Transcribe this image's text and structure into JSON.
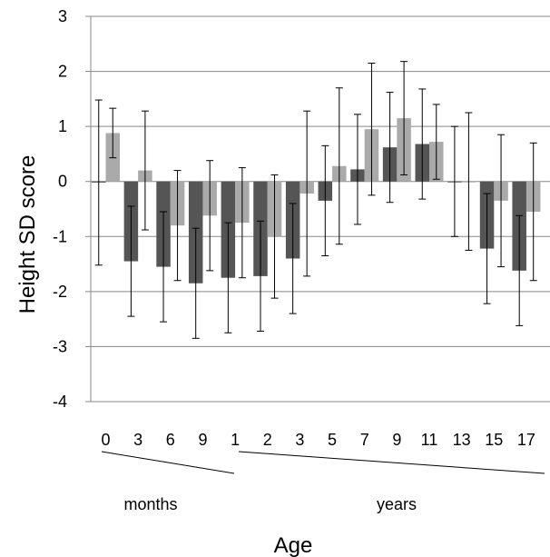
{
  "chart_data": {
    "type": "bar",
    "title": "",
    "ylabel": "Height SD score",
    "xlabel": "Age",
    "group_labels": [
      "months",
      "years"
    ],
    "categories": [
      "0",
      "3",
      "6",
      "9",
      "1",
      "2",
      "3",
      "5",
      "7",
      "9",
      "11",
      "13",
      "15",
      "17"
    ],
    "ylim": [
      -4,
      3
    ],
    "yticks": [
      3,
      2,
      1,
      0,
      -1,
      -2,
      -3,
      -4
    ],
    "grid": true,
    "legend": "none",
    "series": [
      {
        "color": "#555555",
        "values": [
          -0.02,
          -1.45,
          -1.55,
          -1.85,
          -1.75,
          -1.72,
          -1.4,
          -0.35,
          0.22,
          0.62,
          0.68,
          0.0,
          -1.22,
          -1.62
        ],
        "errors": [
          1.5,
          1.0,
          1.0,
          1.0,
          1.0,
          1.0,
          1.0,
          1.0,
          1.0,
          1.0,
          1.0,
          1.0,
          1.0,
          1.0
        ]
      },
      {
        "color": "#aaaaaa",
        "values": [
          0.88,
          0.2,
          -0.8,
          -0.62,
          -0.75,
          -1.0,
          -0.22,
          0.28,
          0.95,
          1.15,
          0.72,
          0.0,
          -0.35,
          -0.55
        ],
        "errors": [
          0.45,
          1.08,
          1.0,
          1.0,
          1.0,
          1.12,
          1.5,
          1.42,
          1.2,
          1.03,
          0.68,
          1.25,
          1.2,
          1.25
        ]
      }
    ]
  }
}
